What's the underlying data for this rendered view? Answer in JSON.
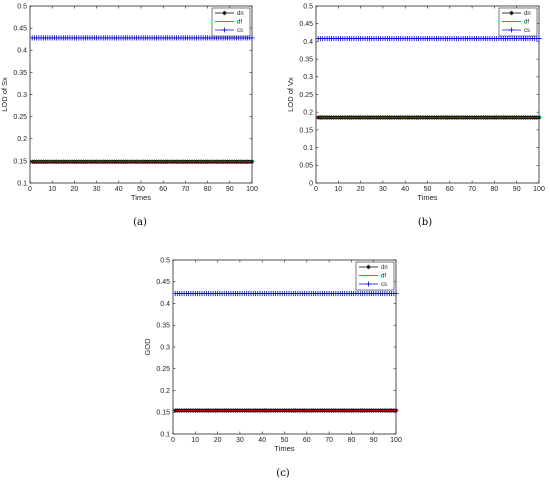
{
  "panels": [
    {
      "caption": "(a)",
      "chart_data": {
        "type": "line",
        "xlabel": "Times",
        "ylabel": "LOD of Sx",
        "xlim": [
          0,
          100
        ],
        "ylim": [
          0.1,
          0.5
        ],
        "xticks": [
          0,
          10,
          20,
          30,
          40,
          50,
          60,
          70,
          80,
          90,
          100
        ],
        "yticks": [
          0.1,
          0.15,
          0.2,
          0.25,
          0.3,
          0.35,
          0.4,
          0.45,
          0.5
        ],
        "legend_position": "top-right",
        "series": [
          {
            "name": "dn",
            "color": "#000000",
            "marker": "asterisk",
            "x_range": [
              1,
              100
            ],
            "y_constant": 0.148
          },
          {
            "name": "df",
            "color": "#ff0000",
            "marker": "none",
            "x_range": [
              1,
              100
            ],
            "y_constant": 0.148
          },
          {
            "name": "cs",
            "color": "#0000ff",
            "marker": "plus",
            "x_range": [
              1,
              100
            ],
            "y_constant": 0.428
          }
        ]
      }
    },
    {
      "caption": "(b)",
      "chart_data": {
        "type": "line",
        "xlabel": "Times",
        "ylabel": "LOD of Vx",
        "xlim": [
          0,
          100
        ],
        "ylim": [
          0,
          0.5
        ],
        "xticks": [
          0,
          10,
          20,
          30,
          40,
          50,
          60,
          70,
          80,
          90,
          100
        ],
        "yticks": [
          0,
          0.05,
          0.1,
          0.15,
          0.2,
          0.25,
          0.3,
          0.35,
          0.4,
          0.45,
          0.5
        ],
        "legend_position": "top-right",
        "series": [
          {
            "name": "dn",
            "color": "#000000",
            "marker": "asterisk",
            "x_range": [
              1,
              100
            ],
            "y_constant": 0.185
          },
          {
            "name": "df",
            "color": "#ff0000",
            "marker": "none",
            "x_range": [
              1,
              100
            ],
            "y_constant": 0.185
          },
          {
            "name": "cs",
            "color": "#0000ff",
            "marker": "plus",
            "x_range": [
              1,
              100
            ],
            "y_constant": 0.408
          }
        ]
      }
    },
    {
      "caption": "(c)",
      "chart_data": {
        "type": "line",
        "xlabel": "Times",
        "ylabel": "GOD",
        "xlim": [
          0,
          100
        ],
        "ylim": [
          0.1,
          0.5
        ],
        "xticks": [
          0,
          10,
          20,
          30,
          40,
          50,
          60,
          70,
          80,
          90,
          100
        ],
        "yticks": [
          0.1,
          0.15,
          0.2,
          0.25,
          0.3,
          0.35,
          0.4,
          0.45,
          0.5
        ],
        "legend_position": "top-right",
        "series": [
          {
            "name": "dn",
            "color": "#000000",
            "marker": "asterisk",
            "x_range": [
              1,
              100
            ],
            "y_constant": 0.154
          },
          {
            "name": "df",
            "color": "#ff0000",
            "marker": "none",
            "x_range": [
              1,
              100
            ],
            "y_constant": 0.154
          },
          {
            "name": "cs",
            "color": "#0000ff",
            "marker": "plus",
            "x_range": [
              1,
              100
            ],
            "y_constant": 0.423
          }
        ]
      }
    }
  ]
}
